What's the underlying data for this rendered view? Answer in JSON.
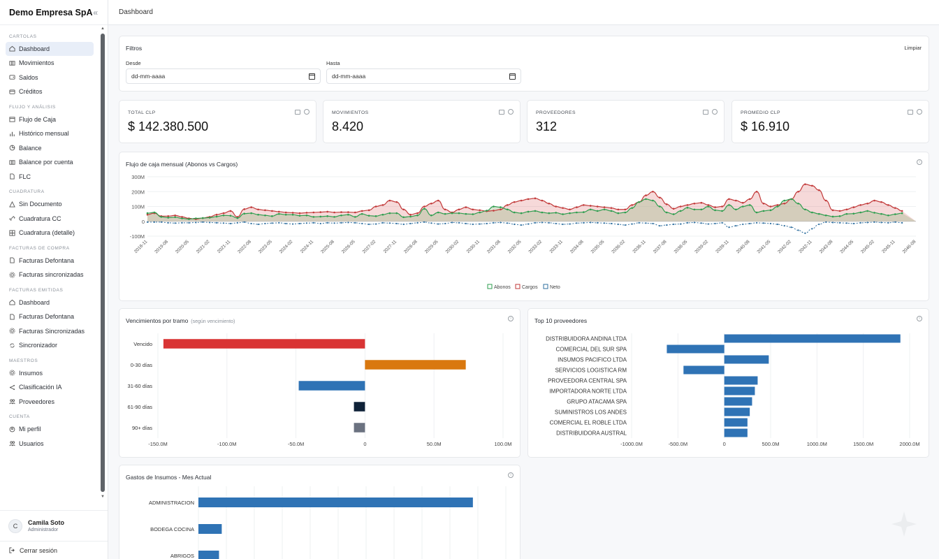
{
  "sidebar": {
    "company": "Demo Empresa SpA",
    "collapse_glyph": "«",
    "sections": [
      {
        "title": "CARTOLAS",
        "items": [
          {
            "label": "Dashboard",
            "icon": "home-icon",
            "active": true
          },
          {
            "label": "Movimientos",
            "icon": "columns-icon"
          },
          {
            "label": "Saldos",
            "icon": "wallet-icon"
          },
          {
            "label": "Créditos",
            "icon": "card-icon"
          }
        ]
      },
      {
        "title": "FLUJO Y ANÁLISIS",
        "items": [
          {
            "label": "Flujo de Caja",
            "icon": "calendar-icon"
          },
          {
            "label": "Histórico mensual",
            "icon": "bar-chart-icon"
          },
          {
            "label": "Balance",
            "icon": "pie-icon"
          },
          {
            "label": "Balance por cuenta",
            "icon": "columns-icon"
          },
          {
            "label": "FLC",
            "icon": "document-icon"
          }
        ]
      },
      {
        "title": "CUADRATURA",
        "items": [
          {
            "label": "Sin Documento",
            "icon": "warning-icon"
          },
          {
            "label": "Cuadratura CC",
            "icon": "link-icon"
          },
          {
            "label": "Cuadratura (detalle)",
            "icon": "grid-icon"
          }
        ]
      },
      {
        "title": "FACTURAS DE COMPRA",
        "items": [
          {
            "label": "Facturas Defontana",
            "icon": "document-icon"
          },
          {
            "label": "Facturas sincronizadas",
            "icon": "gear-icon"
          }
        ]
      },
      {
        "title": "FACTURAS EMITIDAS",
        "items": [
          {
            "label": "Dashboard",
            "icon": "home-icon"
          },
          {
            "label": "Facturas Defontana",
            "icon": "document-icon"
          },
          {
            "label": "Facturas Sincronizadas",
            "icon": "gear-icon"
          },
          {
            "label": "Sincronizador",
            "icon": "sync-icon"
          }
        ]
      },
      {
        "title": "MAESTROS",
        "items": [
          {
            "label": "Insumos",
            "icon": "gear-icon"
          },
          {
            "label": "Clasificación IA",
            "icon": "share-icon"
          },
          {
            "label": "Proveedores",
            "icon": "users-icon"
          }
        ]
      },
      {
        "title": "CUENTA",
        "items": [
          {
            "label": "Mi perfil",
            "icon": "user-icon"
          },
          {
            "label": "Usuarios",
            "icon": "users-icon"
          }
        ]
      }
    ],
    "user": {
      "initial": "C",
      "name": "Camila Soto",
      "role": "Administrador"
    },
    "logout": "Cerrar sesión"
  },
  "topbar": {
    "title": "Dashboard"
  },
  "filters": {
    "title": "Filtros",
    "clear": "Limpiar",
    "from_label": "Desde",
    "to_label": "Hasta",
    "from_value": "dd-mm-aaaa",
    "to_value": "dd-mm-aaaa"
  },
  "kpis": [
    {
      "label": "TOTAL CLP",
      "value": "$ 142.380.500"
    },
    {
      "label": "MOVIMIENTOS",
      "value": "8.420"
    },
    {
      "label": "PROVEEDORES",
      "value": "312"
    },
    {
      "label": "PROMEDIO CLP",
      "value": "$ 16.910"
    }
  ],
  "chart_data": [
    {
      "type": "area",
      "title": "Flujo de caja mensual (Abonos vs Cargos)",
      "y_ticks": [
        "300M",
        "200M",
        "100M",
        "0",
        "-100M"
      ],
      "ylim": [
        -100,
        300
      ],
      "legend": [
        "Abonos",
        "Cargos",
        "Neto"
      ],
      "legend_position": "bottom",
      "colors": {
        "abonos": "#2e9e4f",
        "cargos": "#c23a3a",
        "neto": "#2f6f9f"
      },
      "x": [
        "2018-11",
        "2019-02",
        "2019-05",
        "2019-08",
        "2019-11",
        "2020-02",
        "2020-05",
        "2020-08",
        "2020-11",
        "2021-02",
        "2021-05",
        "2021-08",
        "2021-11",
        "2022-02",
        "2022-05",
        "2022-08",
        "2022-11",
        "2023-02",
        "2023-05",
        "2023-08",
        "2023-11",
        "2024-02",
        "2024-05",
        "2024-08",
        "2024-11",
        "2025-02",
        "2025-05",
        "2025-08",
        "2025-11",
        "2026-02",
        "2026-05",
        "2026-08",
        "2026-11",
        "2027-02",
        "2027-05",
        "2027-08",
        "2027-11",
        "2028-02",
        "2028-05",
        "2028-08",
        "2028-11",
        "2029-02",
        "2029-05",
        "2029-08",
        "2029-11",
        "2030-02",
        "2030-05",
        "2030-08",
        "2030-11",
        "2031-02",
        "2031-05",
        "2031-08",
        "2031-11",
        "2032-02",
        "2032-05",
        "2032-08",
        "2032-11",
        "2033-02",
        "2033-05",
        "2033-08",
        "2033-11",
        "2034-02",
        "2034-05",
        "2034-08",
        "2034-11",
        "2035-02",
        "2035-05",
        "2035-08",
        "2035-11",
        "2036-02",
        "2036-05",
        "2036-08",
        "2036-11",
        "2037-02",
        "2037-05",
        "2037-08",
        "2037-11",
        "2038-02",
        "2038-05",
        "2038-08",
        "2038-11",
        "2039-02",
        "2039-05",
        "2039-08",
        "2039-11",
        "2040-02",
        "2040-05",
        "2040-08",
        "2040-11",
        "2041-02",
        "2041-05",
        "2041-08",
        "2041-11",
        "2042-02",
        "2042-05",
        "2042-08",
        "2042-11",
        "2043-02",
        "2043-05",
        "2043-08",
        "2043-11",
        "2044-02",
        "2044-05",
        "2044-08",
        "2044-11",
        "2045-02",
        "2045-05",
        "2045-08",
        "2045-11",
        "2046-02",
        "2046-05",
        "2046-08"
      ],
      "abonos": [
        55,
        60,
        30,
        25,
        28,
        20,
        15,
        20,
        22,
        25,
        32,
        40,
        38,
        22,
        52,
        55,
        45,
        40,
        35,
        50,
        45,
        45,
        38,
        40,
        30,
        32,
        35,
        30,
        40,
        45,
        30,
        50,
        38,
        35,
        45,
        55,
        55,
        28,
        32,
        40,
        85,
        40,
        60,
        50,
        55,
        55,
        50,
        48,
        60,
        72,
        100,
        95,
        80,
        60,
        55,
        65,
        70,
        60,
        55,
        58,
        48,
        55,
        60,
        62,
        80,
        70,
        80,
        70,
        55,
        60,
        90,
        130,
        150,
        140,
        100,
        60,
        48,
        70,
        92,
        80,
        80,
        100,
        75,
        70,
        110,
        80,
        100,
        110,
        60,
        70,
        75,
        100,
        140,
        150,
        120,
        80,
        60,
        50,
        40,
        32,
        35,
        50,
        52,
        60,
        70,
        58,
        50,
        40,
        48,
        55
      ],
      "cargos": [
        45,
        55,
        35,
        35,
        40,
        30,
        20,
        15,
        22,
        30,
        45,
        55,
        70,
        30,
        82,
        95,
        80,
        75,
        70,
        65,
        60,
        58,
        55,
        58,
        60,
        62,
        65,
        60,
        62,
        62,
        60,
        70,
        75,
        100,
        110,
        140,
        130,
        80,
        45,
        55,
        100,
        120,
        140,
        80,
        60,
        80,
        95,
        80,
        75,
        68,
        72,
        80,
        110,
        130,
        140,
        150,
        155,
        140,
        120,
        100,
        90,
        80,
        95,
        110,
        105,
        100,
        95,
        90,
        80,
        80,
        110,
        130,
        175,
        200,
        160,
        115,
        85,
        100,
        110,
        120,
        125,
        110,
        95,
        100,
        150,
        140,
        125,
        150,
        200,
        120,
        100,
        110,
        120,
        150,
        200,
        250,
        240,
        210,
        140,
        75,
        70,
        80,
        95,
        110,
        120,
        140,
        130,
        110,
        90,
        70
      ],
      "neto": [
        -5,
        -5,
        -5,
        -10,
        -12,
        -10,
        -10,
        -8,
        -5,
        -8,
        -10,
        -12,
        -15,
        -10,
        -5,
        -15,
        -20,
        -15,
        -12,
        -10,
        -15,
        -18,
        -15,
        -12,
        -10,
        -15,
        -10,
        -12,
        -10,
        -8,
        -10,
        -15,
        -20,
        -18,
        -10,
        -12,
        -15,
        -20,
        -15,
        -10,
        -5,
        -12,
        -18,
        -15,
        -8,
        -10,
        -15,
        -20,
        -18,
        -15,
        -10,
        -8,
        -12,
        -20,
        -25,
        -18,
        -10,
        -8,
        -10,
        -15,
        -20,
        -18,
        -12,
        -10,
        -8,
        -10,
        -12,
        -15,
        -20,
        -25,
        -18,
        -10,
        -12,
        -15,
        -30,
        -25,
        -20,
        -18,
        -10,
        -8,
        -12,
        -18,
        -15,
        -10,
        -40,
        -30,
        -20,
        -15,
        -10,
        -12,
        -15,
        -20,
        -30,
        -40,
        -60,
        -80,
        -50,
        -20,
        -5,
        -8,
        -10,
        -12,
        -15,
        -10,
        -8,
        -5,
        -8,
        -10,
        -5,
        -10
      ]
    },
    {
      "type": "bar",
      "orientation": "horizontal",
      "title": "Vencimientos por tramo",
      "subtitle": "(según vencimiento)",
      "categories": [
        "Vencido",
        "0-30 días",
        "31-60 días",
        "61-90 días",
        "90+ días"
      ],
      "values": [
        -146,
        73,
        -48,
        -8,
        -8
      ],
      "colors": [
        "#d93434",
        "#d9780f",
        "#2f73b5",
        "#0f2238",
        "#6b7280"
      ],
      "x_ticks": [
        "-150.0M",
        "-100.0M",
        "-50.0M",
        "0",
        "50.0M",
        "100.0M"
      ],
      "xlim": [
        -150,
        100
      ]
    },
    {
      "type": "bar",
      "orientation": "horizontal",
      "title": "Top 10 proveedores",
      "categories": [
        "DISTRIBUIDORA ANDINA LTDA",
        "COMERCIAL DEL SUR SPA",
        "INSUMOS PACIFICO LTDA",
        "SERVICIOS LOGISTICA RM",
        "PROVEEDORA CENTRAL SPA",
        "IMPORTADORA NORTE LTDA",
        "GRUPO ATACAMA SPA",
        "SUMINISTROS LOS ANDES",
        "COMERCIAL EL ROBLE LTDA",
        "DISTRIBUIDORA AUSTRAL"
      ],
      "values": [
        1900,
        -620,
        480,
        -440,
        360,
        330,
        300,
        275,
        250,
        250
      ],
      "color": "#2f73b5",
      "x_ticks": [
        "-1000.0M",
        "-500.0M",
        "0",
        "500.0M",
        "1000.0M",
        "1500.0M",
        "2000.0M"
      ],
      "xlim": [
        -1000,
        2000
      ]
    },
    {
      "type": "bar",
      "orientation": "horizontal",
      "title": "Gastos de Insumos - Mes Actual",
      "categories": [
        "ADMINISTRACION",
        "BODEGA COCINA",
        "ABRIGOS"
      ],
      "values": [
        100,
        8.5,
        7.5
      ],
      "color": "#2f73b5"
    }
  ]
}
